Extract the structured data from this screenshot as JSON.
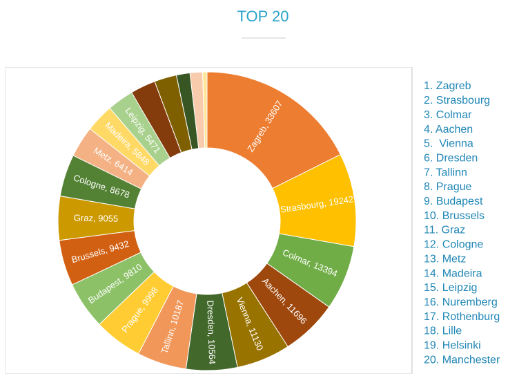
{
  "chart_data": {
    "type": "doughnut",
    "title": "TOP 20",
    "categories": [
      "Zagreb",
      "Strasbourg",
      "Colmar",
      "Aachen",
      "Vienna",
      "Dresden",
      "Tallinn",
      "Prague",
      "Budapest",
      "Brussels",
      "Graz",
      "Cologne",
      "Metz",
      "Madeira",
      "Leipzig",
      "Nuremberg",
      "Rothenburg",
      "Lille",
      "Helsinki",
      "Manchester"
    ],
    "values": [
      33607,
      19242,
      13394,
      11696,
      11130,
      10564,
      10187,
      9998,
      9810,
      9432,
      9055,
      8678,
      6414,
      5848,
      5471,
      5200,
      4600,
      2800,
      2600,
      900
    ],
    "value_labels": [
      "Zagreb, 33607",
      "Strasbourg, 19242",
      "Colmar, 13394",
      "Aachen, 11696",
      "Vienna, 11130",
      "Dresden, 10564",
      "Tallinn, 10187",
      "Prague, 9998",
      "Budapest, 9810",
      "Brussels, 9432",
      "Graz, 9055",
      "Cologne, 8678",
      "Metz, 6414",
      "Madeira, 5848",
      "Leipzig, 5471",
      null,
      null,
      null,
      null,
      null
    ],
    "colors": [
      "#ed7d31",
      "#ffc000",
      "#70ad47",
      "#9e480e",
      "#997300",
      "#43682b",
      "#f1975a",
      "#ffcd33",
      "#8cc168",
      "#d26012",
      "#cc9a00",
      "#548235",
      "#f4b183",
      "#ffd966",
      "#a9d18e",
      "#843c0c",
      "#7f6000",
      "#375623",
      "#f8cbad",
      "#ffe699"
    ],
    "ranking": [
      "1. Zagreb",
      "2. Strasbourg",
      "3. Colmar",
      "4. Aachen",
      "5.  Vienna",
      "6. Dresden",
      "7. Tallinn",
      "8. Prague",
      "9. Budapest",
      "10. Brussels",
      "11. Graz",
      "12. Cologne",
      "13. Metz",
      "14. Madeira",
      "15. Leipzig",
      "16. Nuremberg",
      "17. Rothenburg",
      "18. Lille",
      "19. Helsinki",
      "20. Manchester"
    ]
  }
}
